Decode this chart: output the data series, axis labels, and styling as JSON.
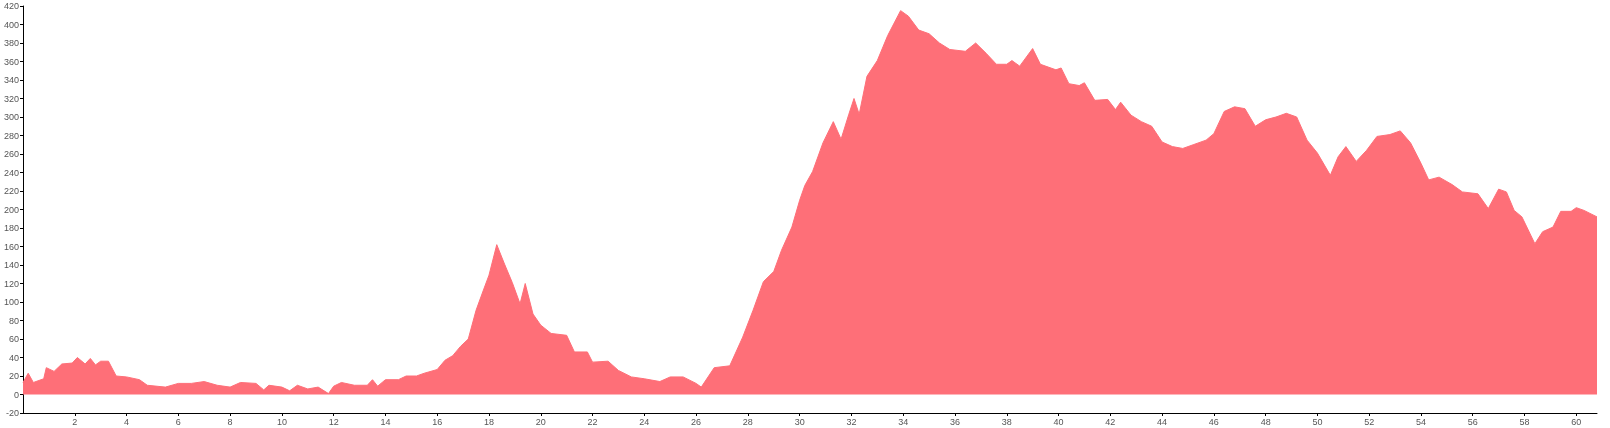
{
  "chart_data": {
    "type": "area",
    "x": [
      0,
      0.2,
      0.4,
      0.8,
      0.9,
      1.2,
      1.5,
      1.9,
      2.1,
      2.4,
      2.6,
      2.8,
      3.0,
      3.3,
      3.6,
      4.0,
      4.5,
      4.8,
      5.5,
      6.0,
      6.5,
      7.0,
      7.5,
      8.0,
      8.4,
      9.0,
      9.3,
      9.5,
      10.0,
      10.3,
      10.6,
      11.0,
      11.4,
      11.8,
      12.0,
      12.3,
      12.8,
      13.3,
      13.5,
      13.7,
      14.0,
      14.5,
      14.8,
      15.2,
      15.5,
      16.0,
      16.3,
      16.6,
      16.9,
      17.2,
      17.5,
      17.8,
      18.0,
      18.3,
      18.6,
      18.9,
      19.2,
      19.4,
      19.7,
      20.0,
      20.4,
      21.0,
      21.3,
      21.8,
      22.0,
      22.6,
      23.0,
      23.5,
      24.0,
      24.6,
      25.0,
      25.5,
      26.0,
      26.2,
      26.7,
      27.3,
      27.8,
      28.2,
      28.6,
      29.0,
      29.3,
      29.7,
      30.0,
      30.2,
      30.5,
      30.9,
      31.3,
      31.6,
      31.9,
      32.1,
      32.3,
      32.6,
      33.0,
      33.4,
      33.9,
      34.2,
      34.6,
      35.0,
      35.4,
      35.8,
      36.4,
      36.8,
      37.2,
      37.6,
      38.0,
      38.2,
      38.5,
      39.0,
      39.3,
      39.9,
      40.1,
      40.4,
      40.8,
      41.0,
      41.4,
      41.9,
      42.2,
      42.4,
      42.8,
      43.2,
      43.6,
      44.0,
      44.4,
      44.8,
      45.2,
      45.7,
      46.0,
      46.4,
      46.8,
      47.2,
      47.6,
      48.0,
      48.4,
      48.8,
      49.2,
      49.6,
      50.0,
      50.5,
      50.8,
      51.1,
      51.5,
      51.9,
      52.3,
      52.8,
      53.2,
      53.6,
      54.0,
      54.3,
      54.7,
      55.2,
      55.6,
      56.2,
      56.6,
      57.0,
      57.3,
      57.6,
      57.9,
      58.4,
      58.7,
      59.1,
      59.4,
      59.8,
      60.0,
      60.3,
      60.8
    ],
    "values": [
      13,
      23,
      13,
      17,
      29,
      25,
      33,
      34,
      40,
      33,
      39,
      32,
      36,
      36,
      20,
      19,
      16,
      10,
      8,
      12,
      12,
      14,
      10,
      8,
      13,
      12,
      5,
      10,
      8,
      4,
      10,
      6,
      8,
      1,
      9,
      13,
      10,
      10,
      16,
      9,
      16,
      16,
      20,
      20,
      23,
      27,
      37,
      42,
      52,
      60,
      91,
      114,
      129,
      162,
      141,
      121,
      98,
      120,
      87,
      75,
      66,
      64,
      46,
      46,
      35,
      36,
      26,
      19,
      17,
      14,
      19,
      19,
      12,
      8,
      29,
      31,
      62,
      91,
      122,
      133,
      156,
      181,
      210,
      226,
      241,
      272,
      295,
      276,
      303,
      320,
      303,
      344,
      361,
      388,
      415,
      409,
      394,
      390,
      380,
      373,
      371,
      380,
      369,
      357,
      357,
      361,
      355,
      374,
      357,
      351,
      353,
      336,
      334,
      337,
      318,
      319,
      308,
      316,
      302,
      295,
      290,
      273,
      268,
      266,
      270,
      275,
      282,
      306,
      311,
      309,
      290,
      297,
      300,
      304,
      300,
      275,
      261,
      237,
      257,
      268,
      252,
      264,
      279,
      281,
      285,
      272,
      250,
      232,
      235,
      227,
      219,
      217,
      201,
      222,
      219,
      199,
      192,
      163,
      176,
      181,
      198,
      198,
      202,
      199,
      192
    ],
    "color": "#fe6f78",
    "xlim": [
      0,
      60.8
    ],
    "xticks": [
      2,
      4,
      6,
      8,
      10,
      12,
      14,
      16,
      18,
      20,
      22,
      24,
      26,
      28,
      30,
      32,
      34,
      36,
      38,
      40,
      42,
      44,
      46,
      48,
      50,
      52,
      54,
      56,
      58,
      60
    ],
    "ylim": [
      -20,
      420
    ],
    "yticks": [
      -20,
      0,
      20,
      40,
      60,
      80,
      100,
      120,
      140,
      160,
      180,
      200,
      220,
      240,
      260,
      280,
      300,
      320,
      340,
      360,
      380,
      400,
      420
    ],
    "grid": false
  }
}
